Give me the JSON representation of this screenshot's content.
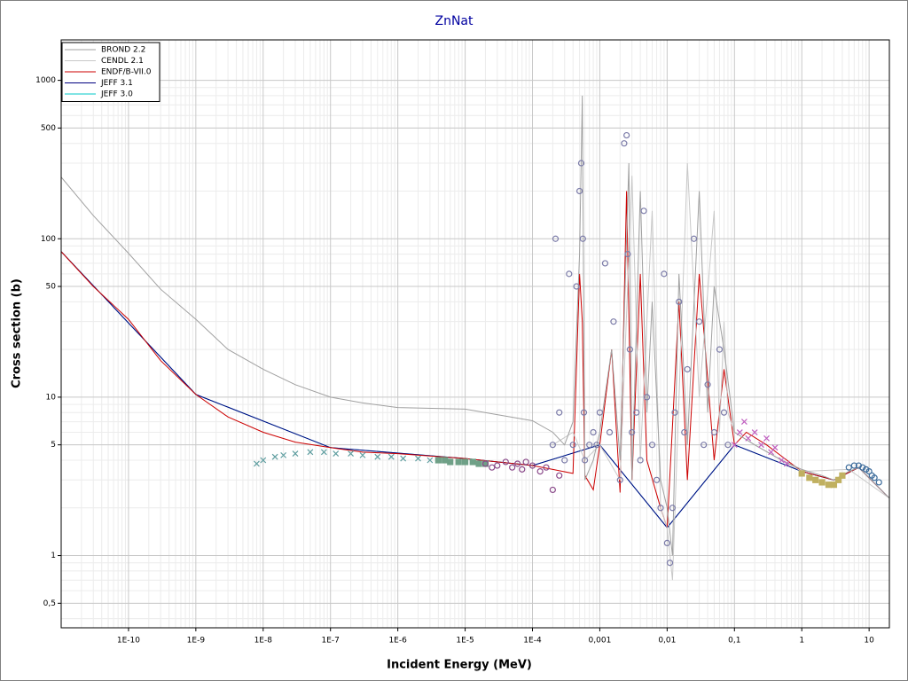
{
  "chart_data": {
    "type": "line",
    "title": "ZnNat",
    "xlabel": "Incident Energy (MeV)",
    "ylabel": "Cross section (b)",
    "xscale": "log",
    "yscale": "log",
    "grid": true,
    "legend": "upper left",
    "xlim": [
      1e-11,
      20
    ],
    "ylim": [
      0.35,
      1800
    ],
    "xticks": [
      {
        "value": 1e-10,
        "label": "1E-10"
      },
      {
        "value": 1e-09,
        "label": "1E-9"
      },
      {
        "value": 1e-08,
        "label": "1E-8"
      },
      {
        "value": 1e-07,
        "label": "1E-7"
      },
      {
        "value": 1e-06,
        "label": "1E-6"
      },
      {
        "value": 1e-05,
        "label": "1E-5"
      },
      {
        "value": 0.0001,
        "label": "1E-4"
      },
      {
        "value": 0.001,
        "label": "0,001"
      },
      {
        "value": 0.01,
        "label": "0,01"
      },
      {
        "value": 0.1,
        "label": "0,1"
      },
      1,
      10
    ],
    "yticks": [
      {
        "value": 0.5,
        "label": "0,5"
      },
      1,
      5,
      10,
      50,
      100,
      500,
      1000
    ],
    "series": [
      {
        "name": "BROND 2.2",
        "color": "#a0a0a0",
        "x": [
          1e-11,
          3e-11,
          1e-10,
          3e-10,
          1e-09,
          3e-09,
          1e-08,
          3e-08,
          1e-07,
          3e-07,
          1e-06,
          1e-05,
          0.0001,
          0.0002,
          0.0003,
          0.0004,
          0.0005,
          0.00055,
          0.0006,
          0.0008,
          0.001,
          0.0015,
          0.002,
          0.0025,
          0.0027,
          0.003,
          0.004,
          0.005,
          0.006,
          0.008,
          0.01,
          0.012,
          0.015,
          0.02,
          0.03,
          0.04,
          0.05,
          0.07,
          0.1,
          0.2,
          0.5,
          1,
          2,
          3,
          5,
          7,
          10,
          20
        ],
        "values": [
          245,
          140,
          81,
          48,
          31,
          20,
          15,
          12,
          10,
          9.2,
          8.6,
          8.4,
          7.1,
          6,
          5,
          7,
          80,
          800,
          3,
          4,
          6,
          20,
          4,
          100,
          300,
          3,
          200,
          8,
          40,
          3,
          2,
          1,
          60,
          5,
          200,
          8,
          50,
          20,
          6,
          5,
          4,
          3.5,
          3.2,
          3,
          3.4,
          3.6,
          3.1,
          2.3
        ]
      },
      {
        "name": "CENDL 2.1",
        "color": "#c8c8c8",
        "x": [
          0.0002,
          0.0004,
          0.0006,
          0.001,
          0.002,
          0.003,
          0.004,
          0.006,
          0.008,
          0.01,
          0.012,
          0.02,
          0.03,
          0.05,
          0.06,
          0.07,
          0.08,
          0.1,
          0.2,
          1,
          5,
          20
        ],
        "values": [
          5,
          6,
          4,
          5,
          3,
          250,
          4,
          150,
          2,
          1.5,
          0.7,
          300,
          10,
          150,
          6,
          30,
          8,
          6,
          5,
          3.4,
          3.5,
          2.3
        ]
      },
      {
        "name": "ENDF/B-VII.0",
        "color": "#cc0000",
        "x": [
          1e-11,
          3e-11,
          1e-10,
          3e-10,
          1e-09,
          3e-09,
          1e-08,
          3e-08,
          1e-07,
          3e-07,
          1e-06,
          1e-05,
          0.0001,
          0.0002,
          0.0004,
          0.0005,
          0.00055,
          0.0006,
          0.0008,
          0.001,
          0.0015,
          0.002,
          0.0025,
          0.003,
          0.004,
          0.005,
          0.008,
          0.01,
          0.015,
          0.02,
          0.03,
          0.05,
          0.07,
          0.1,
          0.15,
          0.3,
          0.6,
          1,
          3,
          7,
          20
        ],
        "values": [
          83,
          50,
          31,
          17,
          10.4,
          7.5,
          6,
          5.2,
          4.8,
          4.5,
          4.4,
          4.1,
          3.7,
          3.5,
          3.3,
          60,
          30,
          3.2,
          2.6,
          5,
          20,
          2.5,
          200,
          3,
          60,
          4,
          2,
          1.5,
          40,
          3,
          60,
          4,
          15,
          5,
          6,
          5,
          4,
          3.4,
          3,
          3.6,
          2.3
        ]
      },
      {
        "name": "JEFF 3.1",
        "color": "#000080",
        "x": [
          1e-11,
          1e-09,
          1e-07,
          1e-05,
          0.0001,
          0.001,
          0.01,
          0.1,
          1,
          3,
          7,
          20
        ],
        "values": [
          83,
          10.4,
          4.8,
          4.1,
          3.7,
          5,
          1.5,
          5,
          3.4,
          3,
          3.6,
          2.3
        ]
      },
      {
        "name": "JEFF 3.0",
        "color": "#00c8c8",
        "x": [
          1e-11,
          1e-09,
          1e-07,
          1e-05,
          0.0001,
          0.001,
          0.01,
          0.1,
          1,
          3,
          7,
          20
        ],
        "values": [
          83,
          10.4,
          4.8,
          4.1,
          3.7,
          5,
          1.5,
          5,
          3.4,
          3,
          3.6,
          2.3
        ]
      }
    ],
    "point_sets": [
      {
        "color": "#5f9ea0",
        "marker": "x",
        "x": [
          8e-09,
          1e-08,
          1.5e-08,
          2e-08,
          3e-08,
          5e-08,
          8e-08,
          1.2e-07,
          2e-07,
          3e-07,
          5e-07,
          8e-07,
          1.2e-06,
          2e-06,
          3e-06
        ],
        "values": [
          3.8,
          4,
          4.2,
          4.3,
          4.4,
          4.5,
          4.5,
          4.4,
          4.4,
          4.3,
          4.2,
          4.2,
          4.1,
          4.1,
          4
        ]
      },
      {
        "color": "#6fa087",
        "marker": "square",
        "x": [
          4e-06,
          5e-06,
          6e-06,
          8e-06,
          1e-05,
          1.3e-05,
          1.6e-05,
          2e-05
        ],
        "values": [
          4,
          4,
          3.9,
          3.9,
          3.9,
          3.9,
          3.8,
          3.8
        ]
      },
      {
        "color": "#8a4a8a",
        "marker": "circle",
        "x": [
          2e-05,
          2.5e-05,
          3e-05,
          4e-05,
          5e-05,
          6e-05,
          7e-05,
          8e-05,
          0.0001,
          0.00013,
          0.00016,
          0.0002,
          0.00025
        ],
        "values": [
          3.8,
          3.6,
          3.7,
          3.9,
          3.6,
          3.8,
          3.5,
          3.9,
          3.7,
          3.4,
          3.6,
          2.6,
          3.2
        ]
      },
      {
        "color": "#7b7ba8",
        "marker": "circle",
        "x": [
          0.0002,
          0.00022,
          0.00025,
          0.0003,
          0.00035,
          0.0004,
          0.00045,
          0.0005,
          0.00053,
          0.00056,
          0.00058,
          0.0006,
          0.0007,
          0.0008,
          0.0009,
          0.001,
          0.0012,
          0.0014,
          0.0016,
          0.002,
          0.0023,
          0.0025,
          0.0026,
          0.0028,
          0.003,
          0.0035,
          0.004,
          0.0045,
          0.005,
          0.006,
          0.007,
          0.008,
          0.009,
          0.01,
          0.011,
          0.012,
          0.013,
          0.015,
          0.018,
          0.02,
          0.025,
          0.03,
          0.035,
          0.04,
          0.05,
          0.06,
          0.07,
          0.08
        ],
        "values": [
          5,
          100,
          8,
          4,
          60,
          5,
          50,
          200,
          300,
          100,
          8,
          4,
          5,
          6,
          5,
          8,
          70,
          6,
          30,
          3,
          400,
          450,
          80,
          20,
          6,
          8,
          4,
          150,
          10,
          5,
          3,
          2,
          60,
          1.2,
          0.9,
          2,
          8,
          40,
          6,
          15,
          100,
          30,
          5,
          12,
          6,
          20,
          8,
          5
        ]
      },
      {
        "color": "#c060c0",
        "marker": "x",
        "x": [
          0.1,
          0.12,
          0.14,
          0.16,
          0.2,
          0.25,
          0.3,
          0.35,
          0.4,
          0.5,
          0.6
        ],
        "values": [
          5,
          6,
          7,
          5.5,
          6,
          5,
          5.5,
          4.5,
          4.8,
          4,
          3.8
        ]
      },
      {
        "color": "#c0b060",
        "marker": "square",
        "x": [
          1,
          1.3,
          1.6,
          2,
          2.5,
          3,
          3.5,
          4
        ],
        "values": [
          3.3,
          3.1,
          3,
          2.9,
          2.8,
          2.8,
          3,
          3.2
        ]
      },
      {
        "color": "#3a6a9a",
        "marker": "circle",
        "x": [
          5,
          6,
          7,
          8,
          9,
          10,
          11,
          12,
          14
        ],
        "values": [
          3.6,
          3.7,
          3.7,
          3.6,
          3.5,
          3.4,
          3.2,
          3.1,
          2.9
        ]
      }
    ]
  }
}
